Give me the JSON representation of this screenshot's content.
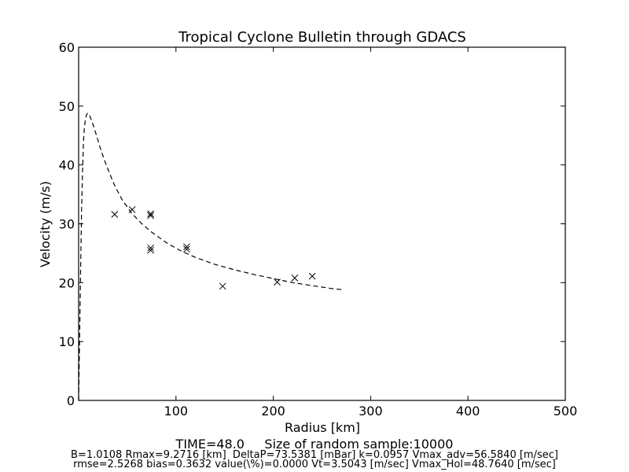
{
  "chart_data": {
    "type": "scatter",
    "title": "Tropical Cyclone Bulletin through GDACS",
    "xlabel": "Radius [km]",
    "ylabel": "Velocity (m/s)",
    "xlim": [
      0,
      500
    ],
    "ylim": [
      0,
      60
    ],
    "xticks": [
      "100",
      "200",
      "300",
      "400",
      "500"
    ],
    "yticks": [
      "0",
      "10",
      "20",
      "30",
      "40",
      "50",
      "60"
    ],
    "grid": false,
    "series": [
      {
        "kind": "scatter",
        "marker": "x",
        "points": [
          {
            "x": 37,
            "y": 31.6
          },
          {
            "x": 55,
            "y": 32.4
          },
          {
            "x": 74,
            "y": 31.7
          },
          {
            "x": 74,
            "y": 31.4
          },
          {
            "x": 74,
            "y": 25.9
          },
          {
            "x": 74,
            "y": 25.5
          },
          {
            "x": 111,
            "y": 26.1
          },
          {
            "x": 111,
            "y": 25.7
          },
          {
            "x": 148,
            "y": 19.4
          },
          {
            "x": 204,
            "y": 20.1
          },
          {
            "x": 222,
            "y": 20.8
          },
          {
            "x": 240,
            "y": 21.1
          }
        ]
      },
      {
        "kind": "line",
        "style": "dashed",
        "points": [
          {
            "x": 0,
            "y": 0
          },
          {
            "x": 1,
            "y": 10
          },
          {
            "x": 2,
            "y": 22
          },
          {
            "x": 3,
            "y": 32
          },
          {
            "x": 4,
            "y": 39
          },
          {
            "x": 5,
            "y": 44
          },
          {
            "x": 6,
            "y": 46.5
          },
          {
            "x": 7,
            "y": 47.8
          },
          {
            "x": 8,
            "y": 48.5
          },
          {
            "x": 9.3,
            "y": 48.8
          },
          {
            "x": 11,
            "y": 48.5
          },
          {
            "x": 14,
            "y": 47.3
          },
          {
            "x": 18,
            "y": 45.2
          },
          {
            "x": 22,
            "y": 43.0
          },
          {
            "x": 27,
            "y": 40.6
          },
          {
            "x": 32,
            "y": 38.5
          },
          {
            "x": 37,
            "y": 36.5
          },
          {
            "x": 45,
            "y": 34.0
          },
          {
            "x": 55,
            "y": 31.7
          },
          {
            "x": 65,
            "y": 30.0
          },
          {
            "x": 75,
            "y": 28.6
          },
          {
            "x": 90,
            "y": 26.8
          },
          {
            "x": 105,
            "y": 25.4
          },
          {
            "x": 120,
            "y": 24.3
          },
          {
            "x": 140,
            "y": 23.1
          },
          {
            "x": 160,
            "y": 22.2
          },
          {
            "x": 180,
            "y": 21.4
          },
          {
            "x": 200,
            "y": 20.7
          },
          {
            "x": 220,
            "y": 20.0
          },
          {
            "x": 240,
            "y": 19.5
          },
          {
            "x": 260,
            "y": 19.0
          },
          {
            "x": 272,
            "y": 18.8
          }
        ]
      }
    ]
  },
  "footer": {
    "line1": "TIME=48.0     Size of random sample:10000",
    "line2": "B=1.0108 Rmax=9.2716 [km]  DeltaP=73.5381 [mBar] k=0.0957 Vmax_adv=56.5840 [m/sec]",
    "line3": "rmse=2.5268 bias=0.3632 value(\\%)=0.0000 Vt=3.5043 [m/sec] Vmax_Hol=48.7640 [m/sec]"
  }
}
